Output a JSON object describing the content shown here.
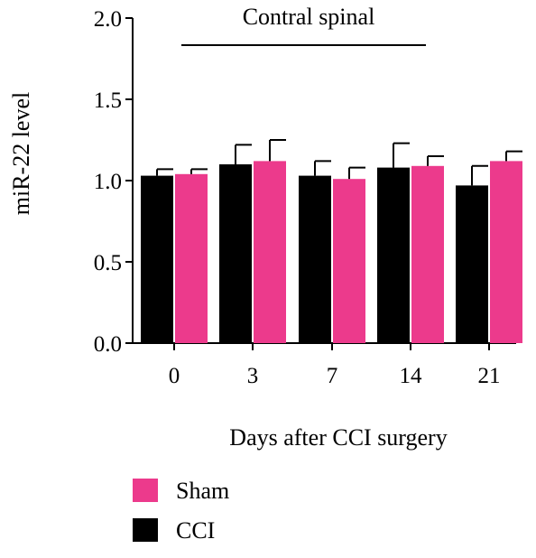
{
  "chart_data": {
    "type": "bar",
    "title": "",
    "annotation": "Contral spinal",
    "xlabel": "Days after CCI surgery",
    "ylabel": "miR-22 level",
    "categories": [
      "0",
      "3",
      "7",
      "14",
      "21"
    ],
    "ylim": [
      0,
      2.0
    ],
    "yticks": [
      0.0,
      0.5,
      1.0,
      1.5,
      2.0
    ],
    "ytick_labels": [
      "0.0",
      "0.5",
      "1.0",
      "1.5",
      "2.0"
    ],
    "grid": false,
    "legend_position": "bottom-left",
    "series": [
      {
        "name": "CCI",
        "color": "#000000",
        "values": [
          1.03,
          1.1,
          1.03,
          1.08,
          0.97
        ],
        "error": [
          0.04,
          0.12,
          0.09,
          0.15,
          0.12
        ]
      },
      {
        "name": "Sham",
        "color": "#ec3a8c",
        "values": [
          1.04,
          1.12,
          1.01,
          1.09,
          1.12
        ],
        "error": [
          0.03,
          0.13,
          0.07,
          0.06,
          0.06
        ]
      }
    ],
    "legend": [
      {
        "name": "Sham",
        "color": "#ec3a8c"
      },
      {
        "name": "CCI",
        "color": "#000000"
      }
    ]
  }
}
